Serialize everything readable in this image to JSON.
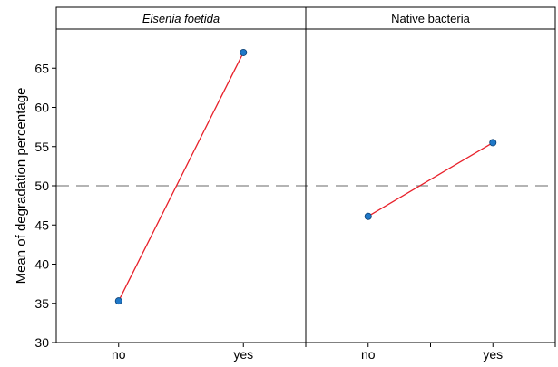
{
  "chart_data": {
    "type": "line",
    "ylabel": "Mean of degradation percentage",
    "xlabel": "",
    "ylim": [
      30,
      70
    ],
    "yticks": [
      30,
      35,
      40,
      45,
      50,
      55,
      60,
      65
    ],
    "categories": [
      "no",
      "yes"
    ],
    "reference_line": {
      "y": 50,
      "style": "dashed",
      "color": "#888888"
    },
    "line_color": "#e8202a",
    "marker_color": "#1f78c8",
    "panels": [
      {
        "title": "Eisenia foetida",
        "title_italic": true,
        "values": [
          35.3,
          67.0
        ]
      },
      {
        "title": "Native bacteria",
        "title_italic": false,
        "values": [
          46.1,
          55.5
        ]
      }
    ]
  }
}
